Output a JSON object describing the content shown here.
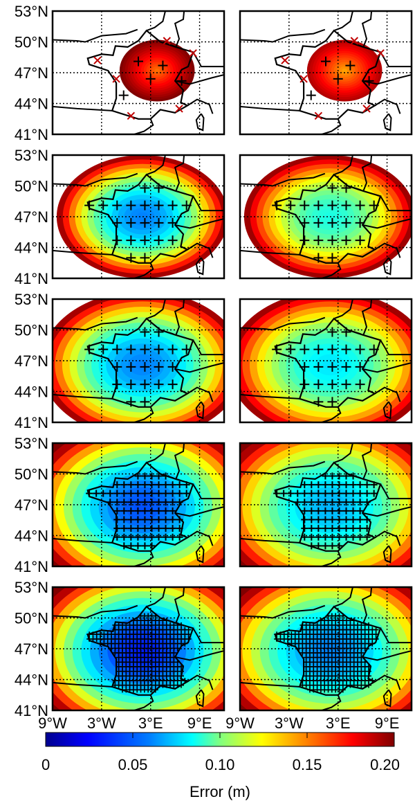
{
  "axes": {
    "lat_ticks": [
      "53°N",
      "50°N",
      "47°N",
      "44°N",
      "41°N"
    ],
    "lat_values": [
      53,
      50,
      47,
      44,
      41
    ],
    "lon_ticks": [
      "9°W",
      "3°W",
      "3°E",
      "9°E"
    ],
    "lon_values": [
      -9,
      -3,
      3,
      9
    ],
    "lon_range": [
      -9,
      12
    ],
    "lat_range": [
      41,
      53
    ],
    "grid": "dotted"
  },
  "map_grid": {
    "rows": 5,
    "columns": 2
  },
  "panels": [
    {
      "row": 1,
      "col": 1,
      "coverage": "small",
      "stations": "sparse",
      "base_error": 0.17
    },
    {
      "row": 1,
      "col": 2,
      "coverage": "small",
      "stations": "sparse",
      "base_error": 0.16
    },
    {
      "row": 2,
      "col": 1,
      "coverage": "medium",
      "stations": "regular",
      "base_error": 0.05
    },
    {
      "row": 2,
      "col": 2,
      "coverage": "medium",
      "stations": "regular",
      "base_error": 0.08
    },
    {
      "row": 3,
      "col": 1,
      "coverage": "large",
      "stations": "regular",
      "base_error": 0.05
    },
    {
      "row": 3,
      "col": 2,
      "coverage": "large",
      "stations": "regular",
      "base_error": 0.07
    },
    {
      "row": 4,
      "col": 1,
      "coverage": "full",
      "stations": "dense",
      "base_error": 0.04
    },
    {
      "row": 4,
      "col": 2,
      "coverage": "full",
      "stations": "dense",
      "base_error": 0.06
    },
    {
      "row": 5,
      "col": 1,
      "coverage": "full",
      "stations": "very dense",
      "base_error": 0.03
    },
    {
      "row": 5,
      "col": 2,
      "coverage": "full",
      "stations": "very dense",
      "base_error": 0.05
    }
  ],
  "colorbar": {
    "ticks": [
      "0",
      "0.05",
      "0.10",
      "0.15",
      "0.20"
    ],
    "tick_values": [
      0,
      0.05,
      0.1,
      0.15,
      0.2
    ],
    "range": [
      0,
      0.2
    ],
    "title": "Error (m)",
    "colormap": "jet",
    "colors": [
      "#00008f",
      "#0000ff",
      "#0080ff",
      "#00ffff",
      "#80ff80",
      "#ffff00",
      "#ff8000",
      "#ff0000",
      "#800000"
    ]
  }
}
